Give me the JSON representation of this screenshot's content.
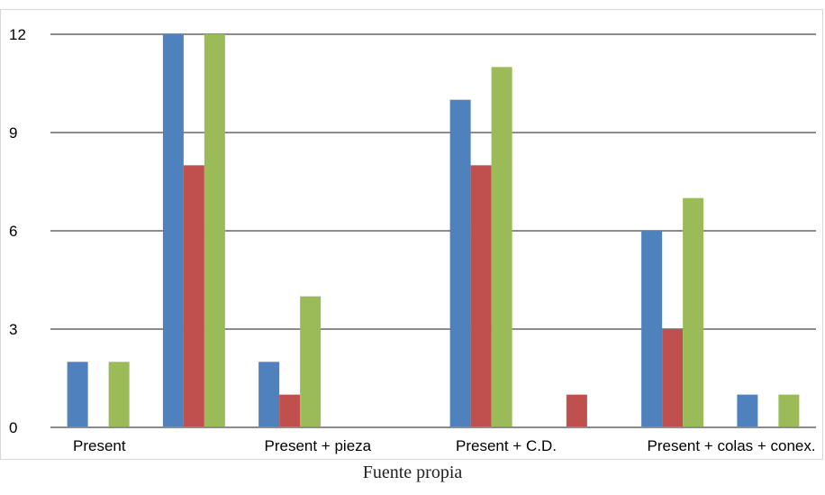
{
  "chart_data": {
    "type": "bar",
    "categories": [
      "Present",
      "",
      "Present + pieza",
      "",
      "Present + C.D.",
      "",
      "Present + colas + conex.",
      ""
    ],
    "series": [
      {
        "values": [
          2,
          12,
          2,
          0,
          10,
          0,
          6,
          1
        ],
        "color": "#4f81bd"
      },
      {
        "values": [
          0,
          8,
          1,
          0,
          8,
          1,
          3,
          0
        ],
        "color": "#c0504d"
      },
      {
        "values": [
          2,
          12,
          4,
          0,
          11,
          0,
          7,
          1
        ],
        "color": "#9bbb59"
      }
    ],
    "y_ticks": [
      0,
      3,
      6,
      9,
      12
    ],
    "ylim": [
      0,
      12
    ],
    "grid": true,
    "legend": "none"
  },
  "caption": "Fuente propia"
}
